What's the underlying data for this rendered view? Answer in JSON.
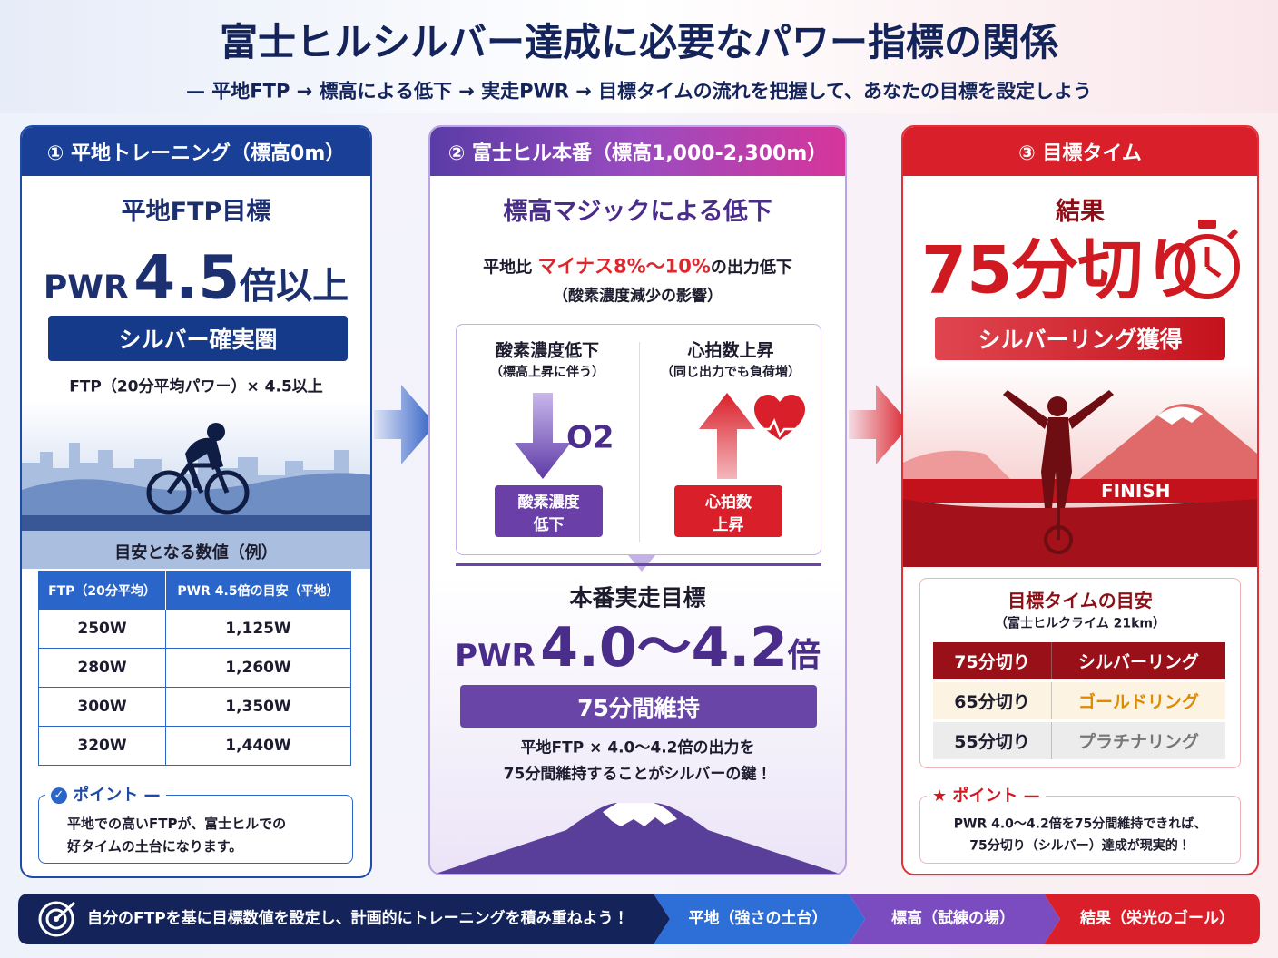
{
  "header": {
    "title": "富士ヒルシルバー達成に必要なパワー指標の関係",
    "subtitle": "— 平地FTP → 標高による低下 → 実走PWR → 目標タイムの流れを把握して、あなたの目標を設定しよう"
  },
  "left": {
    "heading": "① 平地トレーニング（標高0m）",
    "label": "平地FTP目標",
    "prefix": "PWR",
    "value": "4.5",
    "suffix": "倍以上",
    "badge": "シルバー確実圏",
    "note": "FTP（20分平均パワー）× 4.5以上",
    "table": {
      "title": "目安となる数値（例）",
      "columns": [
        "FTP（20分平均）",
        "PWR 4.5倍の目安（平地）"
      ],
      "rows": [
        [
          "250W",
          "1,125W"
        ],
        [
          "280W",
          "1,260W"
        ],
        [
          "300W",
          "1,350W"
        ],
        [
          "320W",
          "1,440W"
        ]
      ]
    },
    "point": {
      "title": "ポイント",
      "lines": [
        "平地での高いFTPが、富士ヒルでの",
        "好タイムの土台になります。"
      ]
    }
  },
  "middle": {
    "heading": "② 富士ヒル本番（標高1,000-2,300m）",
    "title": "標高マジックによる低下",
    "desc": [
      "平地比",
      "マイナス8%〜10%",
      "の出力低下"
    ],
    "desc_note": "（酸素濃度減少の影響）",
    "factors": [
      {
        "title": "酸素濃度低下",
        "sub": "（標高上昇に伴う）",
        "icon": "O2",
        "badge": [
          "酸素濃度",
          "低下"
        ]
      },
      {
        "title": "心拍数上昇",
        "sub": "（同じ出力でも負荷増）",
        "badge": [
          "心拍数",
          "上昇"
        ]
      }
    ],
    "label": "本番実走目標",
    "prefix": "PWR",
    "value": "4.0〜4.2",
    "suffix": "倍",
    "badge": "75分間維持",
    "lines": [
      "平地FTP × 4.0〜4.2倍の出力を",
      "75分間維持することがシルバーの鍵！"
    ]
  },
  "right": {
    "heading": "③ 目標タイム",
    "label": "結果",
    "value": "75分切り",
    "badge": "シルバーリング獲得",
    "banner": "FINISH",
    "table": {
      "title": "目標タイムの目安",
      "sub": "（富士ヒルクライム 21km）",
      "rows": [
        [
          "75分切り",
          "シルバーリング"
        ],
        [
          "65分切り",
          "ゴールドリング"
        ],
        [
          "55分切り",
          "プラチナリング"
        ]
      ]
    },
    "point": {
      "title": "ポイント",
      "lines": [
        "PWR 4.0〜4.2倍を75分間維持できれば、",
        "75分切り（シルバー）達成が現実的！"
      ]
    }
  },
  "footer": {
    "message": "自分のFTPを基に目標数値を設定し、計画的にトレーニングを積み重ねよう！",
    "steps": [
      "平地（強さの土台）",
      "標高（試練の場）",
      "結果（栄光のゴール）"
    ]
  }
}
